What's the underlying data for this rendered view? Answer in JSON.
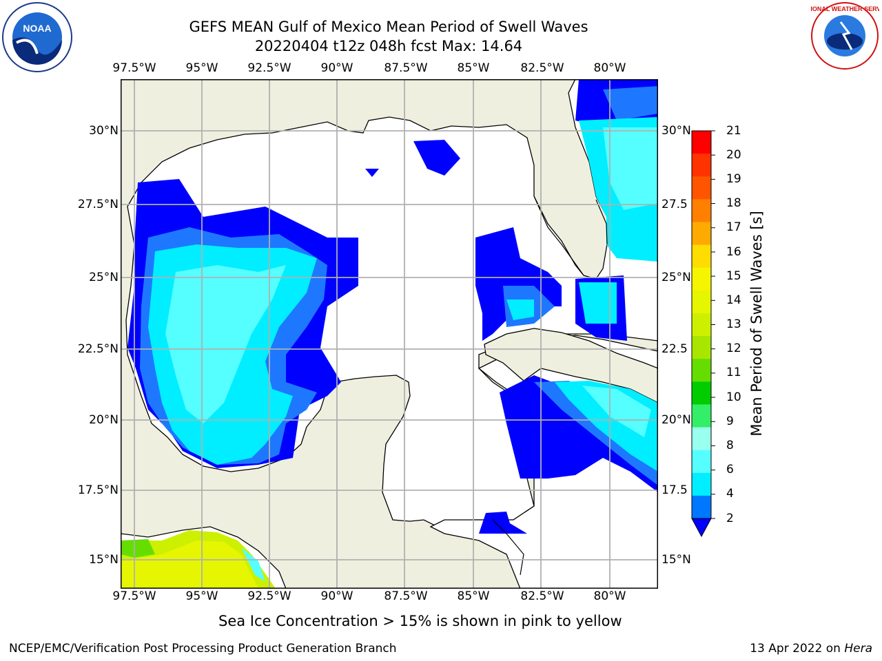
{
  "header": {
    "title_line1": "GEFS MEAN Gulf of Mexico Mean Period of Swell Waves",
    "title_line2": "20220404 t12z 048h fcst   Max: 14.64"
  },
  "map": {
    "lon_labels": [
      "97.5°W",
      "95°W",
      "92.5°W",
      "90°W",
      "87.5°W",
      "85°W",
      "82.5°W",
      "80°W"
    ],
    "lat_labels_left": [
      "30°N",
      "27.5°N",
      "25°N",
      "22.5°N",
      "20°N",
      "17.5°N",
      "15°N"
    ],
    "lat_labels_right": [
      "30°N",
      "27.5",
      "25°N",
      "22.5",
      "20°N",
      "17.5",
      "15°N"
    ],
    "colors": {
      "land": "#efefdf",
      "ocean": "#ffffff",
      "grid": "#b0b0b0"
    }
  },
  "colorbar": {
    "title": "Mean Period of Swell Waves [s]",
    "ticks": [
      "21",
      "20",
      "19",
      "18",
      "17",
      "16",
      "15",
      "14",
      "13",
      "12",
      "11",
      "10",
      "9",
      "8",
      "6",
      "4",
      "2"
    ],
    "colors": [
      "#ff0000",
      "#ff3300",
      "#ff5500",
      "#ff8000",
      "#ffaa00",
      "#ffdd00",
      "#f5f500",
      "#e6f500",
      "#ccf000",
      "#a8e600",
      "#66dd00",
      "#00cc00",
      "#33ee66",
      "#99ffee",
      "#55ffff",
      "#00eeff",
      "#0077ff",
      "#0000ff"
    ]
  },
  "footer": {
    "note": "Sea Ice Concentration > 15% is shown in pink to yellow",
    "left": "NCEP/EMC/Verification Post Processing Product Generation Branch",
    "right_date": "13 Apr 2022 on ",
    "right_machine": "Hera"
  },
  "logos": {
    "left": "NOAA",
    "right": "NATIONAL WEATHER SERVICE"
  }
}
